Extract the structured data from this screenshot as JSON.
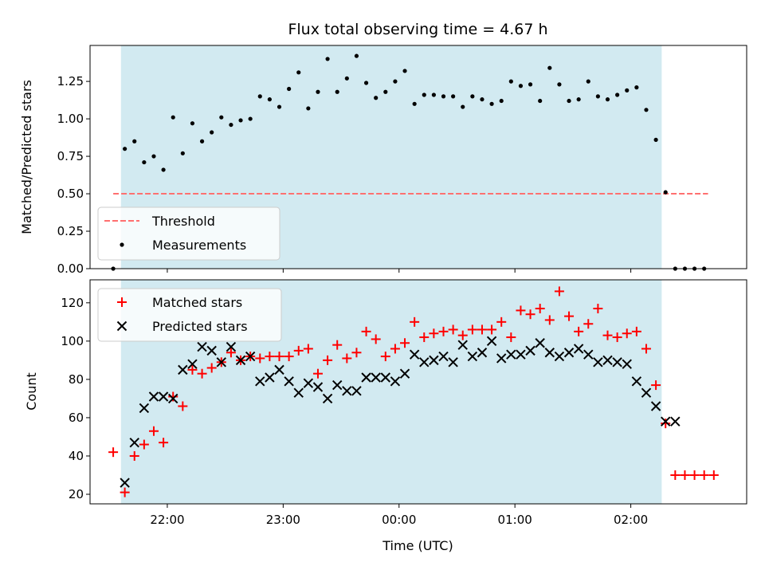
{
  "chart_data": [
    {
      "type": "scatter",
      "title": "Flux total observing time = 4.67 h",
      "xlabel": "",
      "ylabel": "Matched/Predicted stars",
      "ylim": [
        0,
        1.49
      ],
      "yticks": [
        0.0,
        0.25,
        0.5,
        0.75,
        1.0,
        1.25
      ],
      "ytick_labels": [
        "0.00",
        "0.25",
        "0.50",
        "0.75",
        "1.00",
        "1.25"
      ],
      "xlim": [
        "21:20",
        "03:00"
      ],
      "observing_window": [
        "21:36",
        "02:16"
      ],
      "shade_color": "#add8e6",
      "threshold": {
        "name": "Threshold",
        "value": 0.5,
        "x_range": [
          "21:32",
          "02:40"
        ],
        "color": "#ff7070",
        "style": "dashed"
      },
      "series": [
        {
          "name": "Measurements",
          "color": "#000000",
          "x": [
            "21:32",
            "21:38",
            "21:43",
            "21:48",
            "21:53",
            "21:58",
            "22:03",
            "22:08",
            "22:13",
            "22:18",
            "22:23",
            "22:28",
            "22:33",
            "22:38",
            "22:43",
            "22:48",
            "22:53",
            "22:58",
            "23:03",
            "23:08",
            "23:13",
            "23:18",
            "23:23",
            "23:28",
            "23:33",
            "23:38",
            "23:43",
            "23:48",
            "23:53",
            "23:58",
            "00:03",
            "00:08",
            "00:13",
            "00:18",
            "00:23",
            "00:28",
            "00:33",
            "00:38",
            "00:43",
            "00:48",
            "00:53",
            "00:58",
            "01:03",
            "01:08",
            "01:13",
            "01:18",
            "01:23",
            "01:28",
            "01:33",
            "01:38",
            "01:43",
            "01:48",
            "01:53",
            "01:58",
            "02:03",
            "02:08",
            "02:13",
            "02:18",
            "02:23",
            "02:28",
            "02:33",
            "02:38"
          ],
          "y": [
            0.0,
            0.8,
            0.85,
            0.71,
            0.75,
            0.66,
            1.01,
            0.77,
            0.97,
            0.85,
            0.91,
            1.01,
            0.96,
            0.99,
            1.0,
            1.15,
            1.13,
            1.08,
            1.2,
            1.31,
            1.07,
            1.18,
            1.4,
            1.18,
            1.27,
            1.42,
            1.24,
            1.14,
            1.18,
            1.25,
            1.32,
            1.1,
            1.16,
            1.16,
            1.15,
            1.15,
            1.08,
            1.15,
            1.13,
            1.1,
            1.12,
            1.25,
            1.22,
            1.23,
            1.12,
            1.34,
            1.23,
            1.12,
            1.13,
            1.25,
            1.15,
            1.13,
            1.16,
            1.19,
            1.21,
            1.06,
            0.86,
            0.51,
            0.0,
            0.0,
            0.0,
            0.0
          ]
        }
      ],
      "legend": [
        "Threshold",
        "Measurements"
      ],
      "legend_position": "lower-left",
      "grid": false
    },
    {
      "type": "scatter",
      "title": "",
      "xlabel": "Time (UTC)",
      "ylabel": "Count",
      "ylim": [
        15,
        132
      ],
      "yticks": [
        20,
        40,
        60,
        80,
        100,
        120
      ],
      "xlim": [
        "21:20",
        "03:00"
      ],
      "xtick_labels": [
        "22:00",
        "23:00",
        "00:00",
        "01:00",
        "02:00"
      ],
      "observing_window": [
        "21:36",
        "02:16"
      ],
      "shade_color": "#add8e6",
      "series": [
        {
          "name": "Matched stars",
          "marker": "plus",
          "color": "#ff0000",
          "x": [
            "21:32",
            "21:38",
            "21:43",
            "21:48",
            "21:53",
            "21:58",
            "22:03",
            "22:08",
            "22:13",
            "22:18",
            "22:23",
            "22:28",
            "22:33",
            "22:38",
            "22:43",
            "22:48",
            "22:53",
            "22:58",
            "23:03",
            "23:08",
            "23:13",
            "23:18",
            "23:23",
            "23:28",
            "23:33",
            "23:38",
            "23:43",
            "23:48",
            "23:53",
            "23:58",
            "00:03",
            "00:08",
            "00:13",
            "00:18",
            "00:23",
            "00:28",
            "00:33",
            "00:38",
            "00:43",
            "00:48",
            "00:53",
            "00:58",
            "01:03",
            "01:08",
            "01:13",
            "01:18",
            "01:23",
            "01:28",
            "01:33",
            "01:38",
            "01:43",
            "01:48",
            "01:53",
            "01:58",
            "02:03",
            "02:08",
            "02:13",
            "02:18",
            "02:23",
            "02:28",
            "02:33",
            "02:38",
            "02:43"
          ],
          "y": [
            42,
            21,
            40,
            46,
            53,
            47,
            71,
            66,
            85,
            83,
            86,
            89,
            94,
            90,
            92,
            91,
            92,
            92,
            92,
            95,
            96,
            83,
            90,
            98,
            91,
            94,
            105,
            101,
            92,
            96,
            99,
            110,
            102,
            104,
            105,
            106,
            103,
            106,
            106,
            106,
            110,
            102,
            116,
            114,
            117,
            111,
            126,
            113,
            105,
            109,
            117,
            103,
            102,
            104,
            105,
            96,
            77,
            57,
            30,
            30,
            30,
            30,
            30
          ]
        },
        {
          "name": "Predicted stars",
          "marker": "x",
          "color": "#000000",
          "x": [
            "21:38",
            "21:43",
            "21:48",
            "21:53",
            "21:58",
            "22:03",
            "22:08",
            "22:13",
            "22:18",
            "22:23",
            "22:28",
            "22:33",
            "22:38",
            "22:43",
            "22:48",
            "22:53",
            "22:58",
            "23:03",
            "23:08",
            "23:13",
            "23:18",
            "23:23",
            "23:28",
            "23:33",
            "23:38",
            "23:43",
            "23:48",
            "23:53",
            "23:58",
            "00:03",
            "00:08",
            "00:13",
            "00:18",
            "00:23",
            "00:28",
            "00:33",
            "00:38",
            "00:43",
            "00:48",
            "00:53",
            "00:58",
            "01:03",
            "01:08",
            "01:13",
            "01:18",
            "01:23",
            "01:28",
            "01:33",
            "01:38",
            "01:43",
            "01:48",
            "01:53",
            "01:58",
            "02:03",
            "02:08",
            "02:13",
            "02:18",
            "02:23"
          ],
          "y": [
            26,
            47,
            65,
            71,
            71,
            70,
            85,
            88,
            97,
            95,
            89,
            97,
            90,
            92,
            79,
            81,
            85,
            79,
            73,
            78,
            76,
            70,
            77,
            74,
            74,
            81,
            81,
            81,
            79,
            83,
            93,
            89,
            90,
            92,
            89,
            98,
            92,
            94,
            100,
            91,
            93,
            93,
            95,
            99,
            94,
            92,
            94,
            96,
            93,
            89,
            90,
            89,
            88,
            79,
            73,
            66,
            58,
            58
          ]
        }
      ],
      "legend": [
        "Matched stars",
        "Predicted stars"
      ],
      "legend_position": "upper-left",
      "grid": false
    }
  ]
}
